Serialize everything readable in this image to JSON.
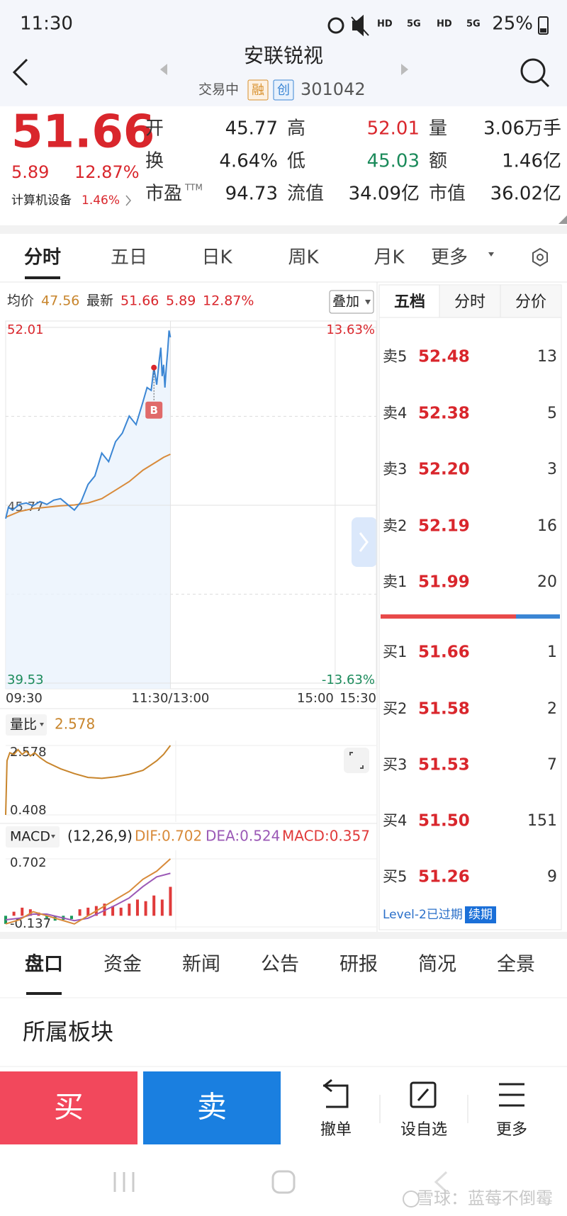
{
  "status": {
    "time": "11:30",
    "indicators": [
      "HD",
      "5G",
      "HD",
      "5G"
    ],
    "battery": "25%"
  },
  "header": {
    "title": "安联锐视",
    "status": "交易中",
    "badges": [
      "融",
      "创"
    ],
    "code": "301042"
  },
  "quote": {
    "price": "51.66",
    "change": "5.89",
    "change_pct": "12.87%",
    "sector": "计算机设备",
    "sector_pct": "1.46%",
    "color": "#d9262c"
  },
  "stats": [
    {
      "label": "开",
      "value": "45.77"
    },
    {
      "label": "高",
      "value": "52.01",
      "color": "#d9262c"
    },
    {
      "label": "量",
      "value": "3.06万手"
    },
    {
      "label": "换",
      "value": "4.64%"
    },
    {
      "label": "低",
      "value": "45.03",
      "color": "#1a8a5a"
    },
    {
      "label": "额",
      "value": "1.46亿"
    },
    {
      "label": "市盈",
      "sup": "TTM",
      "value": "94.73"
    },
    {
      "label": "流值",
      "value": "34.09亿"
    },
    {
      "label": "市值",
      "value": "36.02亿"
    }
  ],
  "chart_tabs": [
    "分时",
    "五日",
    "日K",
    "周K",
    "月K",
    "更多"
  ],
  "intraday": {
    "avg_label": "均价",
    "avg": "47.56",
    "latest_label": "最新",
    "latest": "51.66",
    "change": "5.89",
    "change_pct": "12.87%",
    "overlay": "叠加",
    "trade_marker": "B",
    "chart": {
      "type": "line",
      "xlim": [
        0,
        270
      ],
      "xticks": [
        {
          "value": 0,
          "label": "09:30"
        },
        {
          "value": 120,
          "label": "11:30/13:00"
        },
        {
          "value": 240,
          "label": "15:00"
        },
        {
          "value": 270,
          "label": "15:30"
        }
      ],
      "ylim": [
        39.53,
        52.01
      ],
      "yticks": [
        52.01,
        45.77,
        39.53
      ],
      "y2lim": [
        -13.63,
        13.63
      ],
      "y2ticks": [
        {
          "value": 13.63,
          "label": "13.63%"
        },
        {
          "value": -13.63,
          "label": "-13.63%"
        }
      ],
      "price": {
        "color": "#3b86d4",
        "x": [
          0,
          2,
          5,
          10,
          15,
          20,
          25,
          30,
          35,
          40,
          45,
          50,
          55,
          60,
          65,
          70,
          75,
          80,
          85,
          90,
          95,
          100,
          103,
          106,
          108,
          110,
          112,
          113,
          114,
          115,
          116,
          117,
          118,
          119,
          120
        ],
        "values": [
          45.3,
          45.7,
          45.6,
          45.8,
          45.85,
          45.75,
          45.9,
          45.8,
          45.95,
          46.0,
          45.8,
          45.6,
          45.9,
          46.5,
          46.8,
          47.6,
          47.3,
          48.0,
          48.3,
          48.9,
          48.6,
          49.4,
          49.9,
          49.8,
          50.6,
          50.0,
          50.9,
          51.3,
          50.3,
          50.7,
          49.9,
          50.6,
          51.2,
          51.9,
          51.66
        ]
      },
      "average": {
        "color": "#d88a3a",
        "x": [
          0,
          10,
          20,
          30,
          40,
          50,
          60,
          70,
          80,
          90,
          100,
          110,
          115,
          120
        ],
        "values": [
          45.35,
          45.55,
          45.65,
          45.7,
          45.75,
          45.78,
          45.85,
          46.0,
          46.3,
          46.6,
          47.0,
          47.3,
          47.45,
          47.56
        ]
      }
    }
  },
  "order_book": {
    "tabs": [
      "五档",
      "分时",
      "分价"
    ],
    "asks": [
      {
        "label": "卖5",
        "price": "52.48",
        "qty": "13"
      },
      {
        "label": "卖4",
        "price": "52.38",
        "qty": "5"
      },
      {
        "label": "卖3",
        "price": "52.20",
        "qty": "3"
      },
      {
        "label": "卖2",
        "price": "52.19",
        "qty": "16"
      },
      {
        "label": "卖1",
        "price": "51.99",
        "qty": "20"
      }
    ],
    "bids": [
      {
        "label": "买1",
        "price": "51.66",
        "qty": "1"
      },
      {
        "label": "买2",
        "price": "51.58",
        "qty": "2"
      },
      {
        "label": "买3",
        "price": "51.53",
        "qty": "7"
      },
      {
        "label": "买4",
        "price": "51.50",
        "qty": "151"
      },
      {
        "label": "买5",
        "price": "51.26",
        "qty": "9"
      }
    ],
    "expired": "Level-2已过期",
    "renew": "续期"
  },
  "volume_ratio": {
    "label": "量比",
    "value": "2.578",
    "chart": {
      "type": "line",
      "xlim": [
        0,
        270
      ],
      "ylim": [
        0.408,
        2.578
      ],
      "yticks": [
        2.578,
        0.408
      ],
      "color": "#c8852c",
      "x": [
        0,
        1,
        3,
        6,
        9,
        12,
        15,
        18,
        21,
        25,
        30,
        40,
        50,
        60,
        70,
        80,
        90,
        100,
        105,
        110,
        115,
        120
      ],
      "values": [
        0.408,
        2.1,
        2.35,
        2.3,
        2.45,
        2.3,
        2.4,
        2.25,
        2.35,
        2.2,
        2.05,
        1.85,
        1.7,
        1.58,
        1.55,
        1.6,
        1.68,
        1.8,
        1.95,
        2.1,
        2.3,
        2.578
      ]
    }
  },
  "macd": {
    "label": "MACD",
    "params": "(12,26,9)",
    "dif": "DIF:0.702",
    "dea": "DEA:0.524",
    "macd": "MACD:0.357",
    "chart": {
      "type": "line",
      "xlim": [
        0,
        270
      ],
      "ylim": [
        -0.137,
        0.702
      ],
      "yticks": [
        0.702,
        -0.137
      ],
      "dif_line": {
        "color": "#d88a3a",
        "x": [
          0,
          10,
          20,
          30,
          40,
          50,
          60,
          70,
          80,
          90,
          100,
          110,
          120
        ],
        "values": [
          -0.1,
          -0.05,
          0.05,
          0.0,
          -0.05,
          -0.1,
          0.0,
          0.1,
          0.2,
          0.3,
          0.45,
          0.55,
          0.702
        ]
      },
      "dea_line": {
        "color": "#9b59b6",
        "x": [
          0,
          10,
          20,
          30,
          40,
          50,
          60,
          70,
          80,
          90,
          100,
          110,
          120
        ],
        "values": [
          -0.05,
          -0.03,
          0.02,
          0.02,
          -0.02,
          -0.06,
          -0.03,
          0.05,
          0.13,
          0.22,
          0.36,
          0.48,
          0.524
        ]
      },
      "histogram": {
        "up_color": "#e03a3a",
        "down_color": "#1a9a5a",
        "x": [
          0,
          6,
          12,
          18,
          24,
          30,
          36,
          42,
          48,
          54,
          60,
          66,
          72,
          78,
          84,
          90,
          96,
          102,
          108,
          114,
          120
        ],
        "values": [
          -0.1,
          0.05,
          0.1,
          0.08,
          0.04,
          -0.03,
          -0.06,
          -0.05,
          -0.04,
          0.08,
          0.1,
          0.12,
          0.15,
          0.12,
          0.1,
          0.15,
          0.2,
          0.18,
          0.25,
          0.2,
          0.357
        ]
      }
    }
  },
  "info_tabs": [
    "盘口",
    "资金",
    "新闻",
    "公告",
    "研报",
    "简况",
    "全景"
  ],
  "section_title": "所属板块",
  "actions": {
    "buy": "买",
    "sell": "卖",
    "tools": [
      "撤单",
      "设自选",
      "更多"
    ]
  },
  "watermark": "雪球：蓝莓不倒霉"
}
